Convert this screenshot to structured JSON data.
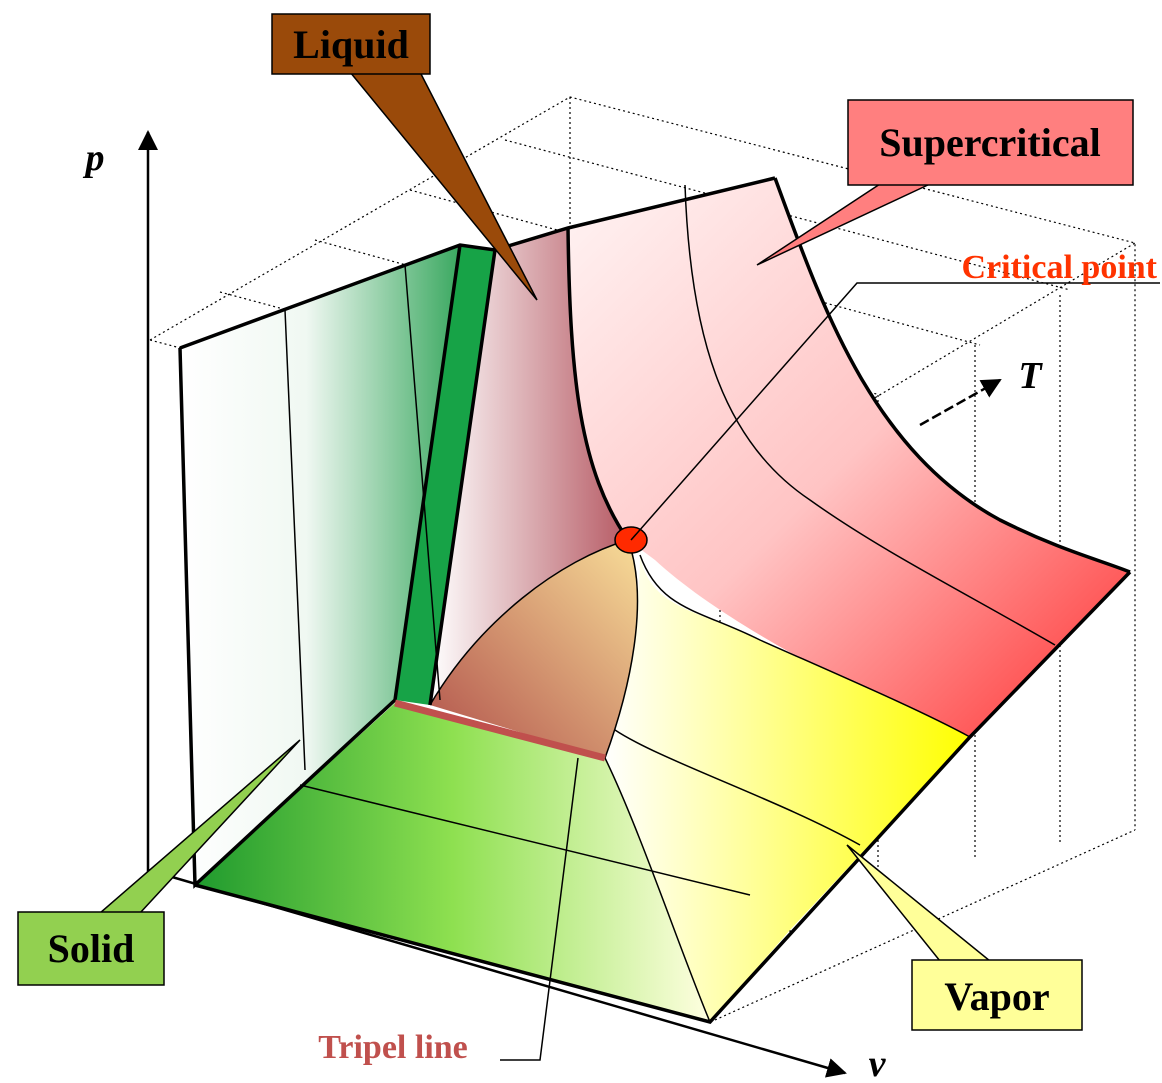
{
  "axes": {
    "p": "p",
    "v": "v",
    "T": "T"
  },
  "labels": {
    "liquid": "Liquid",
    "supercritical": "Supercritical",
    "critical_point": "Critical point",
    "solid": "Solid",
    "vapor": "Vapor",
    "triple_line": "Tripel line"
  }
}
